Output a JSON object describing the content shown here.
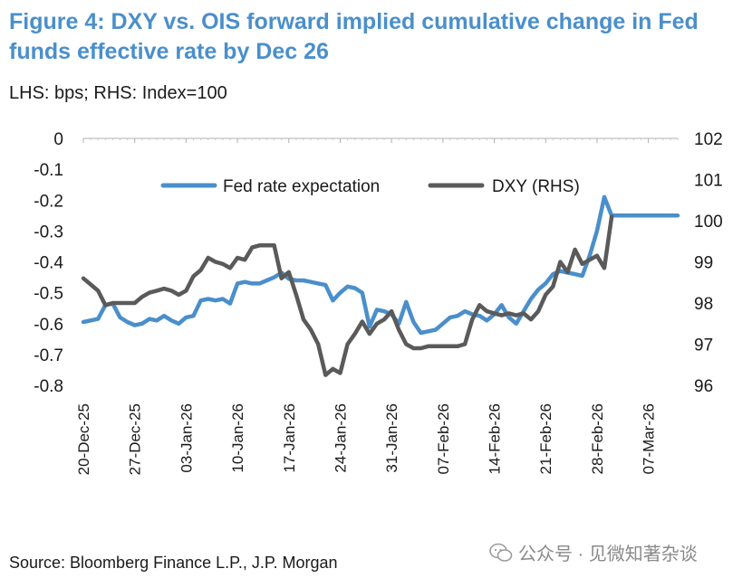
{
  "title": "Figure 4: DXY vs. OIS forward implied cumulative change in Fed funds effective rate by Dec 26",
  "units_note": "LHS: bps; RHS: Index=100",
  "source": "Source: Bloomberg Finance L.P., J.P. Morgan",
  "watermark": "公众号 · 见微知著杂谈",
  "colors": {
    "fed": "#4a8fcb",
    "dxy": "#5a5a5a",
    "title": "#4a8fcb"
  },
  "chart_data": {
    "type": "line",
    "x_tick_labels": [
      "20-Dec-25",
      "27-Dec-25",
      "03-Jan-26",
      "10-Jan-26",
      "17-Jan-26",
      "24-Jan-26",
      "31-Jan-26",
      "07-Feb-26",
      "14-Feb-26",
      "21-Feb-26",
      "28-Feb-26",
      "07-Mar-26"
    ],
    "x_range": [
      0,
      81
    ],
    "y_left": {
      "ticks": [
        "0",
        "-0.1",
        "-0.2",
        "-0.3",
        "-0.4",
        "-0.5",
        "-0.6",
        "-0.7",
        "-0.8"
      ],
      "range": [
        -0.8,
        0
      ]
    },
    "y_right": {
      "ticks": [
        "102",
        "101",
        "100",
        "99",
        "98",
        "97",
        "96"
      ],
      "range": [
        96,
        102
      ]
    },
    "legend": {
      "position": "top",
      "fed_label": "Fed rate expectation",
      "dxy_label": "DXY (RHS)"
    },
    "series": [
      {
        "name": "Fed rate expectation",
        "axis": "left",
        "x": [
          0,
          2,
          3,
          4,
          5,
          6,
          7,
          8,
          9,
          10,
          11,
          12,
          13,
          14,
          15,
          16,
          17,
          18,
          19,
          20,
          21,
          22,
          23,
          24,
          25,
          26,
          27,
          28,
          29,
          30,
          31,
          32,
          33,
          34,
          35,
          36,
          37,
          38,
          39,
          40,
          41,
          42,
          43,
          44,
          45,
          46,
          47,
          48,
          49,
          50,
          51,
          52,
          53,
          54,
          55,
          56,
          57,
          58,
          59,
          60,
          61,
          62,
          63,
          64,
          65,
          66,
          67,
          68,
          69,
          70,
          71,
          72,
          73,
          74,
          75,
          76,
          77,
          78,
          79,
          80,
          81
        ],
        "y": [
          -0.595,
          -0.585,
          -0.54,
          -0.535,
          -0.58,
          -0.595,
          -0.605,
          -0.6,
          -0.585,
          -0.59,
          -0.575,
          -0.59,
          -0.6,
          -0.58,
          -0.575,
          -0.525,
          -0.52,
          -0.525,
          -0.52,
          -0.535,
          -0.47,
          -0.465,
          -0.47,
          -0.47,
          -0.46,
          -0.45,
          -0.435,
          -0.455,
          -0.46,
          -0.46,
          -0.465,
          -0.47,
          -0.475,
          -0.525,
          -0.5,
          -0.48,
          -0.485,
          -0.5,
          -0.61,
          -0.555,
          -0.56,
          -0.57,
          -0.6,
          -0.53,
          -0.595,
          -0.63,
          -0.625,
          -0.62,
          -0.6,
          -0.58,
          -0.575,
          -0.56,
          -0.57,
          -0.575,
          -0.59,
          -0.57,
          -0.54,
          -0.58,
          -0.6,
          -0.56,
          -0.52,
          -0.49,
          -0.47,
          -0.44,
          -0.43,
          -0.435,
          -0.44,
          -0.445,
          -0.38,
          -0.3,
          -0.19,
          -0.25,
          -0.25,
          -0.25,
          -0.25,
          -0.25,
          -0.25,
          -0.25,
          -0.25,
          -0.25,
          -0.25
        ]
      },
      {
        "name": "DXY (RHS)",
        "axis": "right",
        "x": [
          0,
          1,
          2,
          3,
          4,
          5,
          6,
          7,
          8,
          9,
          10,
          11,
          12,
          13,
          14,
          15,
          16,
          17,
          18,
          19,
          20,
          21,
          22,
          23,
          24,
          25,
          26,
          27,
          28,
          29,
          30,
          31,
          32,
          33,
          34,
          35,
          36,
          37,
          38,
          39,
          40,
          41,
          42,
          43,
          44,
          45,
          46,
          47,
          48,
          49,
          50,
          51,
          52,
          53,
          54,
          55,
          56,
          57,
          58,
          59,
          60,
          61,
          62,
          63,
          64,
          65,
          66,
          67,
          68,
          69,
          70,
          71,
          72
        ],
        "y": [
          98.6,
          98.45,
          98.3,
          97.95,
          98.0,
          98.0,
          98.0,
          98.0,
          98.15,
          98.25,
          98.3,
          98.35,
          98.3,
          98.2,
          98.3,
          98.65,
          98.8,
          99.1,
          99.0,
          98.95,
          98.85,
          99.1,
          99.05,
          99.35,
          99.4,
          99.4,
          99.4,
          98.6,
          98.75,
          98.2,
          97.6,
          97.35,
          97.0,
          96.25,
          96.4,
          96.3,
          97.0,
          97.25,
          97.55,
          97.25,
          97.5,
          97.6,
          97.8,
          97.35,
          97.0,
          96.9,
          96.9,
          96.95,
          96.95,
          96.95,
          96.95,
          96.95,
          97.0,
          97.6,
          97.95,
          97.8,
          97.75,
          97.7,
          97.75,
          97.7,
          97.75,
          97.6,
          97.8,
          98.2,
          98.4,
          99.0,
          98.75,
          99.3,
          98.95,
          99.05,
          99.15,
          98.85,
          100.1
        ]
      }
    ]
  }
}
